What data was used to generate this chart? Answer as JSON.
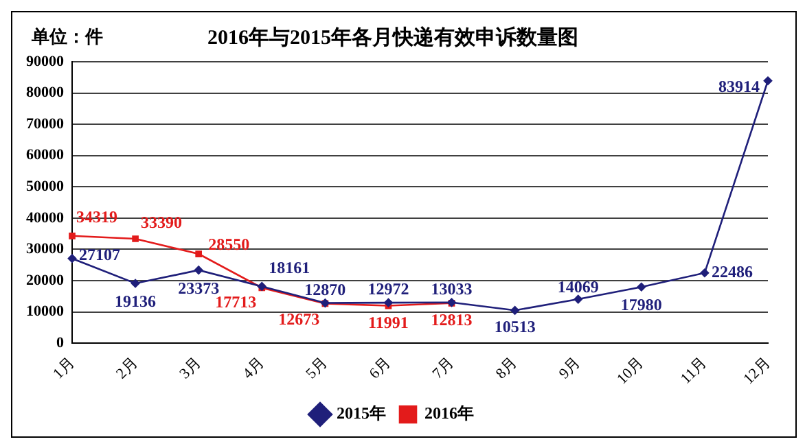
{
  "chart_data": {
    "type": "line",
    "title": "2016年与2015年各月快递有效申诉数量图",
    "annotations": [
      "单位：件"
    ],
    "categories": [
      "1月",
      "2月",
      "3月",
      "4月",
      "5月",
      "6月",
      "7月",
      "8月",
      "9月",
      "10月",
      "11月",
      "12月"
    ],
    "series": [
      {
        "name": "2015年",
        "color": "#1f1f7a",
        "marker": "diamond",
        "values": [
          27107,
          19136,
          23373,
          18161,
          12870,
          12972,
          13033,
          10513,
          14069,
          17980,
          22486,
          83914
        ]
      },
      {
        "name": "2016年",
        "color": "#e31b1b",
        "marker": "square",
        "values": [
          34319,
          33390,
          28550,
          17713,
          12673,
          11991,
          12813,
          null,
          null,
          null,
          null,
          null
        ]
      }
    ],
    "ylim": [
      0,
      90000
    ],
    "yticks": [
      0,
      10000,
      20000,
      30000,
      40000,
      50000,
      60000,
      70000,
      80000,
      90000
    ],
    "grid": "y",
    "legend": "bottom",
    "data_labels": true
  }
}
